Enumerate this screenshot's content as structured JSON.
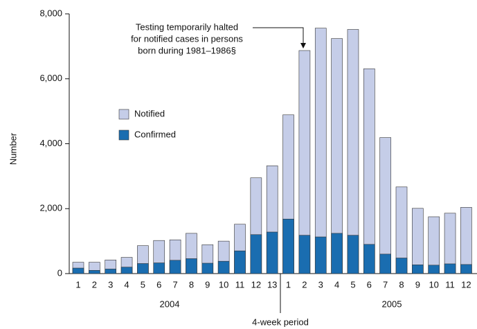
{
  "chart_data": {
    "type": "bar",
    "bar_mode": "overlap",
    "y_label": "Number",
    "x_label": "4-week period",
    "group_labels": [
      "2004",
      "2005"
    ],
    "annotation": [
      "Testing temporarily halted",
      "for notified cases in persons",
      "born during 1981–1986§"
    ],
    "categories": [
      "1",
      "2",
      "3",
      "4",
      "5",
      "6",
      "7",
      "8",
      "9",
      "10",
      "11",
      "12",
      "13",
      "1",
      "2",
      "3",
      "4",
      "5",
      "6",
      "7",
      "8",
      "9",
      "10",
      "11",
      "12"
    ],
    "series": [
      {
        "name": "Notified",
        "color": "#c5cde8",
        "values": [
          350,
          350,
          420,
          500,
          860,
          1020,
          1040,
          1240,
          890,
          1000,
          1520,
          2950,
          3320,
          4890,
          6870,
          7560,
          7240,
          7520,
          6310,
          4190,
          2670,
          2010,
          1750,
          1860,
          2040
        ]
      },
      {
        "name": "Confirmed",
        "color": "#1a6db0",
        "values": [
          170,
          100,
          140,
          200,
          310,
          330,
          410,
          460,
          320,
          380,
          700,
          1200,
          1280,
          1680,
          1180,
          1130,
          1240,
          1180,
          900,
          600,
          480,
          270,
          260,
          300,
          280
        ]
      }
    ],
    "ylim": [
      0,
      8000
    ],
    "yticks": [
      0,
      {
        "value": 2000,
        "label": "2,000"
      },
      {
        "value": 4000,
        "label": "4,000"
      },
      {
        "value": 6000,
        "label": "6,000"
      },
      {
        "value": 8000,
        "label": "8,000"
      }
    ],
    "grid": false
  }
}
